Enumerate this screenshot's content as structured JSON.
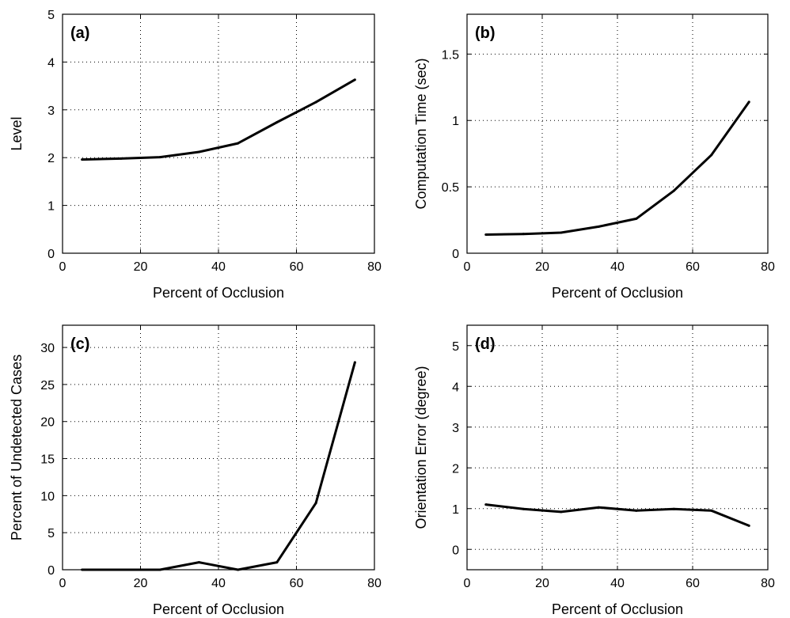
{
  "chart_data": [
    {
      "type": "line",
      "panel_label": "(a)",
      "xlabel": "Percent of Occlusion",
      "ylabel": "Level",
      "xlim": [
        0,
        80
      ],
      "ylim": [
        0,
        5
      ],
      "xticks": [
        "0",
        "20",
        "40",
        "60",
        "80"
      ],
      "yticks": [
        "0",
        "1",
        "2",
        "3",
        "4",
        "5"
      ],
      "grid": true,
      "x": [
        5,
        15,
        25,
        35,
        45,
        55,
        65,
        75
      ],
      "y": [
        1.96,
        1.98,
        2.01,
        2.12,
        2.3,
        2.74,
        3.16,
        3.63
      ]
    },
    {
      "type": "line",
      "panel_label": "(b)",
      "xlabel": "Percent of Occlusion",
      "ylabel": "Computation Time (sec)",
      "xlim": [
        0,
        80
      ],
      "ylim": [
        0,
        1.8
      ],
      "xticks": [
        "0",
        "20",
        "40",
        "60",
        "80"
      ],
      "yticks": [
        "0",
        "0.5",
        "1",
        "1.5"
      ],
      "grid": true,
      "x": [
        5,
        15,
        25,
        35,
        45,
        55,
        65,
        75
      ],
      "y": [
        0.14,
        0.145,
        0.155,
        0.2,
        0.26,
        0.47,
        0.74,
        1.14
      ]
    },
    {
      "type": "line",
      "panel_label": "(c)",
      "xlabel": "Percent of Occlusion",
      "ylabel": "Percent of Undetected Cases",
      "xlim": [
        0,
        80
      ],
      "ylim": [
        0,
        33
      ],
      "xticks": [
        "0",
        "20",
        "40",
        "60",
        "80"
      ],
      "yticks": [
        "0",
        "5",
        "10",
        "15",
        "20",
        "25",
        "30"
      ],
      "grid": true,
      "x": [
        5,
        15,
        25,
        35,
        45,
        55,
        65,
        75
      ],
      "y": [
        0,
        0,
        0,
        1,
        0,
        1,
        9,
        28
      ]
    },
    {
      "type": "line",
      "panel_label": "(d)",
      "xlabel": "Percent of Occlusion",
      "ylabel": "Orientation Error (degree)",
      "xlim": [
        0,
        80
      ],
      "ylim": [
        -0.5,
        5.5
      ],
      "xticks": [
        "0",
        "20",
        "40",
        "60",
        "80"
      ],
      "yticks": [
        "0",
        "1",
        "2",
        "3",
        "4",
        "5"
      ],
      "grid": true,
      "x": [
        5,
        15,
        25,
        35,
        45,
        55,
        65,
        75
      ],
      "y": [
        1.1,
        0.99,
        0.92,
        1.03,
        0.95,
        0.99,
        0.95,
        0.58
      ]
    }
  ]
}
